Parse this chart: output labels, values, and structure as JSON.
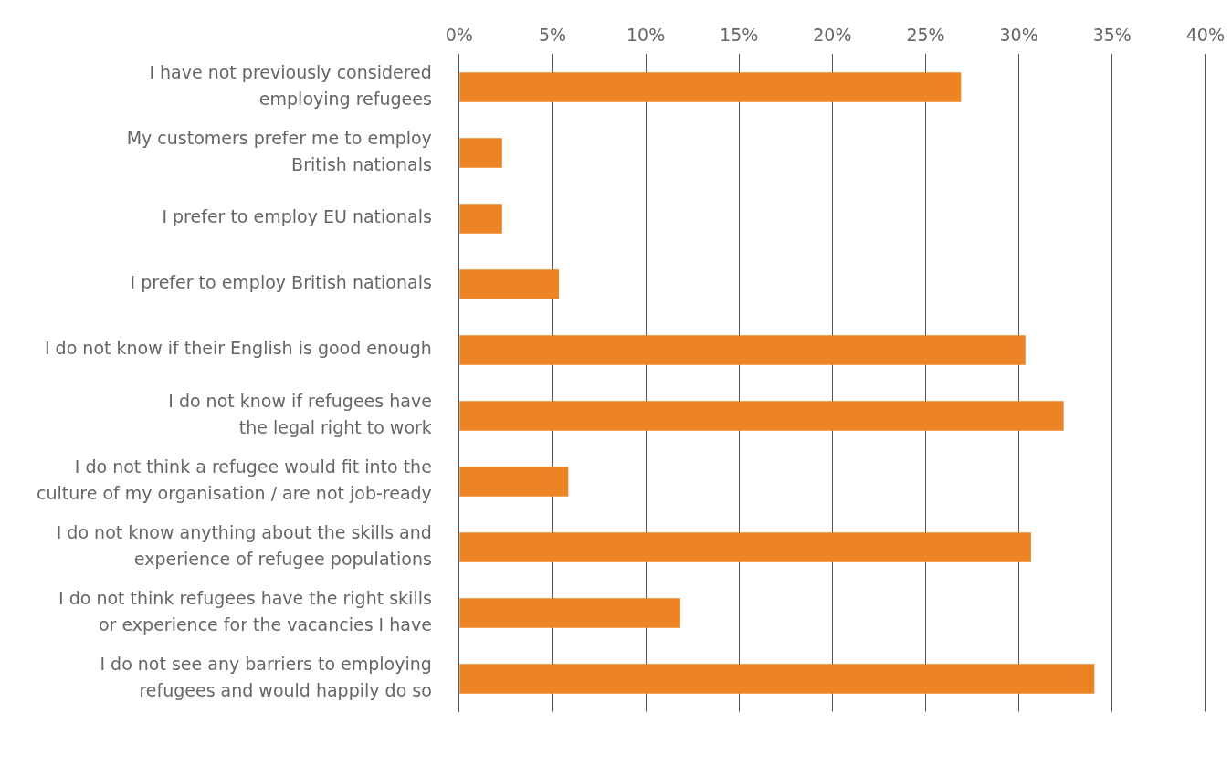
{
  "chart_data": {
    "type": "bar",
    "orientation": "horizontal",
    "categories": [
      "I have not previously considered\nemploying refugees",
      "My customers prefer me to employ\nBritish nationals",
      "I prefer to employ EU nationals",
      "I prefer to employ British nationals",
      "I do not know if their English is good enough",
      "I do not know if refugees have\nthe legal right to work",
      "I do not think a refugee would fit into the\nculture of my organisation / are not job-ready",
      "I do not know anything about the skills and\nexperience of refugee populations",
      "I do not think refugees have the right skills\nor experience for the vacancies I have",
      "I do not see any barriers to employing\nrefugees and would happily do so"
    ],
    "values": [
      26.9,
      2.3,
      2.3,
      5.35,
      30.35,
      32.4,
      5.85,
      30.65,
      11.85,
      34.05
    ],
    "color": "#ec8424",
    "xlim": [
      0,
      40
    ],
    "xticks": [
      {
        "value": 0,
        "label": "0%"
      },
      {
        "value": 5,
        "label": "5%"
      },
      {
        "value": 10,
        "label": "10%"
      },
      {
        "value": 15,
        "label": "15%"
      },
      {
        "value": 20,
        "label": "20%"
      },
      {
        "value": 25,
        "label": "25%"
      },
      {
        "value": 30,
        "label": "30%"
      },
      {
        "value": 35,
        "label": "35%"
      },
      {
        "value": 40,
        "label": "40%"
      }
    ],
    "grid": "x"
  }
}
